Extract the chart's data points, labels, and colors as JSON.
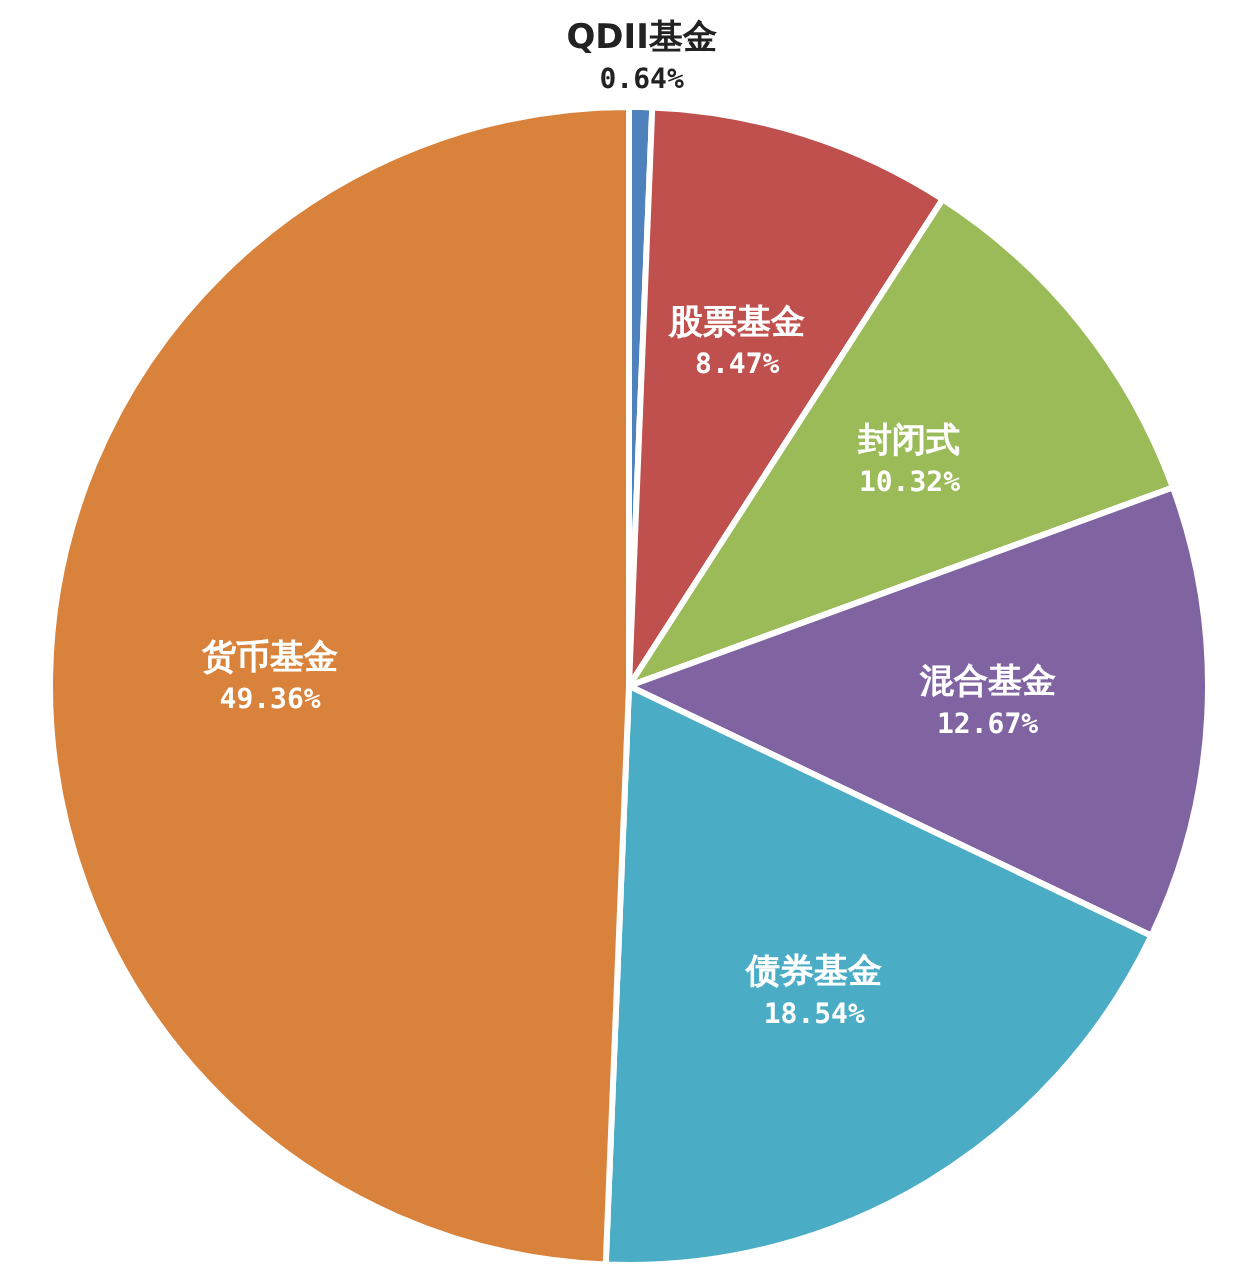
{
  "chart_data": {
    "type": "pie",
    "categories": [
      "QDII基金",
      "股票基金",
      "封闭式",
      "混合基金",
      "债券基金",
      "货币基金"
    ],
    "values": [
      0.64,
      8.47,
      10.32,
      12.67,
      18.54,
      49.36
    ],
    "colors": [
      "#4f81bd",
      "#c0504d",
      "#9bbb59",
      "#8064a2",
      "#4bacc6",
      "#d9823b"
    ],
    "value_labels": [
      "0.64%",
      "8.47%",
      "10.32%",
      "12.67%",
      "18.54%",
      "49.36%"
    ],
    "legend": false
  }
}
